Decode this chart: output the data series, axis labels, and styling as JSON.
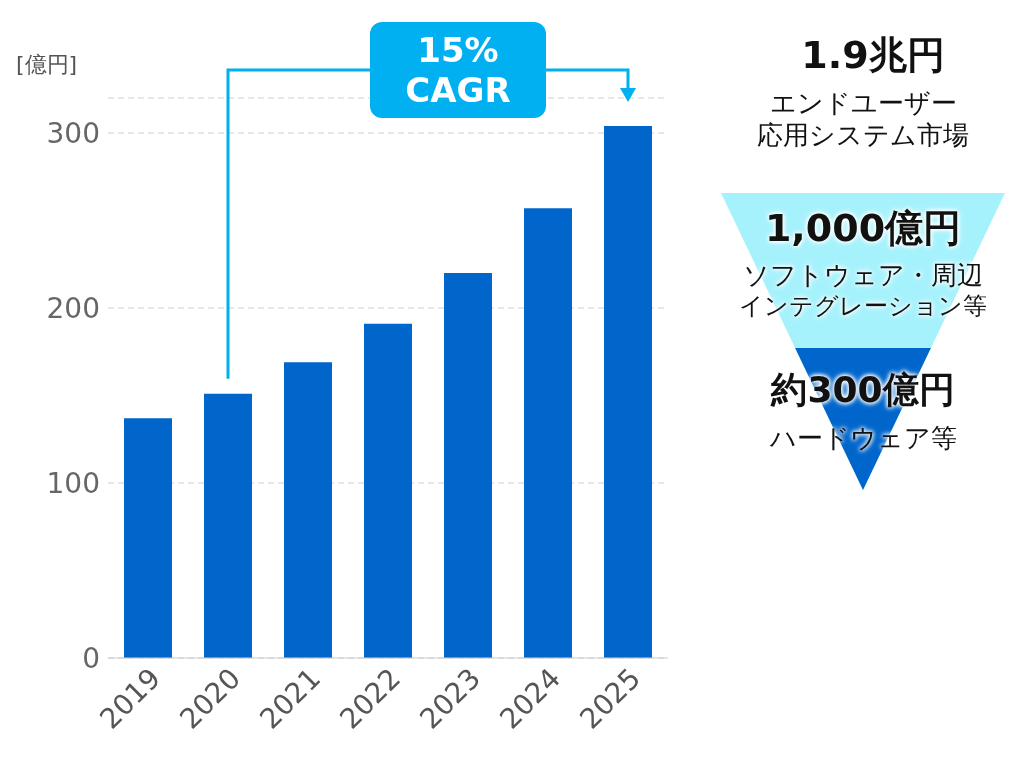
{
  "chart_data": [
    {
      "type": "bar",
      "ylabel": "[億円]",
      "categories": [
        "2019",
        "2020",
        "2021",
        "2022",
        "2023",
        "2024",
        "2025"
      ],
      "values": [
        137,
        151,
        169,
        191,
        220,
        257,
        304
      ],
      "color": "#0066cc",
      "ylim": [
        0,
        320
      ],
      "yticks": [
        0,
        100,
        200,
        300
      ],
      "grid": "y",
      "legend": false,
      "annotations": [
        "15%\nCAGR"
      ]
    },
    {
      "type": "other",
      "colors": [
        "#a6f2fc",
        "#0066cc"
      ],
      "annotations": [
        "1.9兆円",
        "エンドユーザー",
        "応用システム市場",
        "1,000億円",
        "ソフトウェア・周辺",
        "インテグレーション等",
        "約300億円",
        "ハードウェア等"
      ]
    }
  ]
}
